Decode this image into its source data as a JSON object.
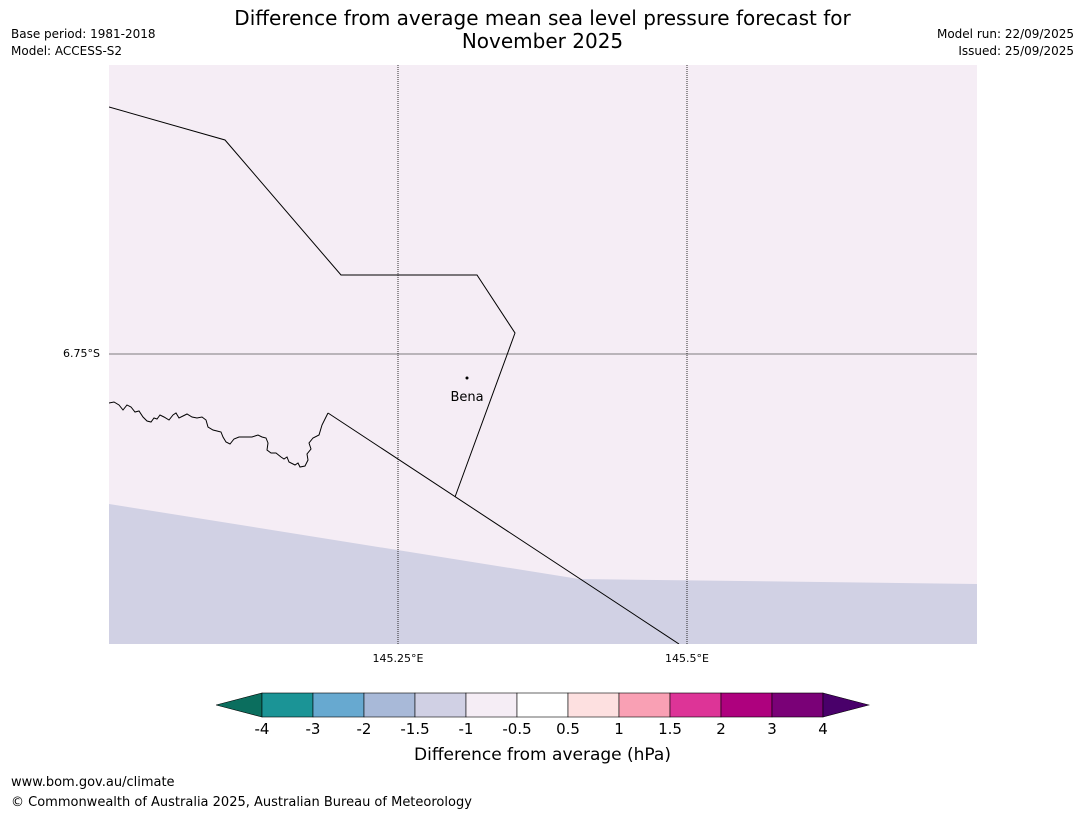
{
  "header": {
    "title_line1": "Difference from average mean sea level pressure forecast for",
    "title_line2": "November 2025",
    "base_period": "Base period: 1981-2018",
    "model": "Model: ACCESS-S2",
    "model_run": "Model run: 22/09/2025",
    "issued": "Issued: 25/09/2025"
  },
  "map": {
    "place_label": "Bena",
    "lat_label": "6.75°S",
    "lon_labels": [
      "145.25°E",
      "145.5°E"
    ],
    "colors": {
      "background_fill": "#f5edf5",
      "lower_fill": "#d1d1e4",
      "border_line": "#000000",
      "gridline": "#000000"
    }
  },
  "colorbar": {
    "label": "Difference from average (hPa)",
    "ticks": [
      "-4",
      "-3",
      "-2",
      "-1.5",
      "-1",
      "-0.5",
      "0.5",
      "1",
      "1.5",
      "2",
      "3",
      "4"
    ],
    "colors": [
      "#0b6e5e",
      "#1b9496",
      "#67a9d0",
      "#a8b9d8",
      "#d0d0e4",
      "#f5edf5",
      "#ffffff",
      "#fde0e0",
      "#f9a0b4",
      "#dd3497",
      "#ae017e",
      "#7a0177",
      "#49006a"
    ]
  },
  "footer": {
    "url": "www.bom.gov.au/climate",
    "copyright": "© Commonwealth of Australia 2025, Australian Bureau of Meteorology"
  }
}
